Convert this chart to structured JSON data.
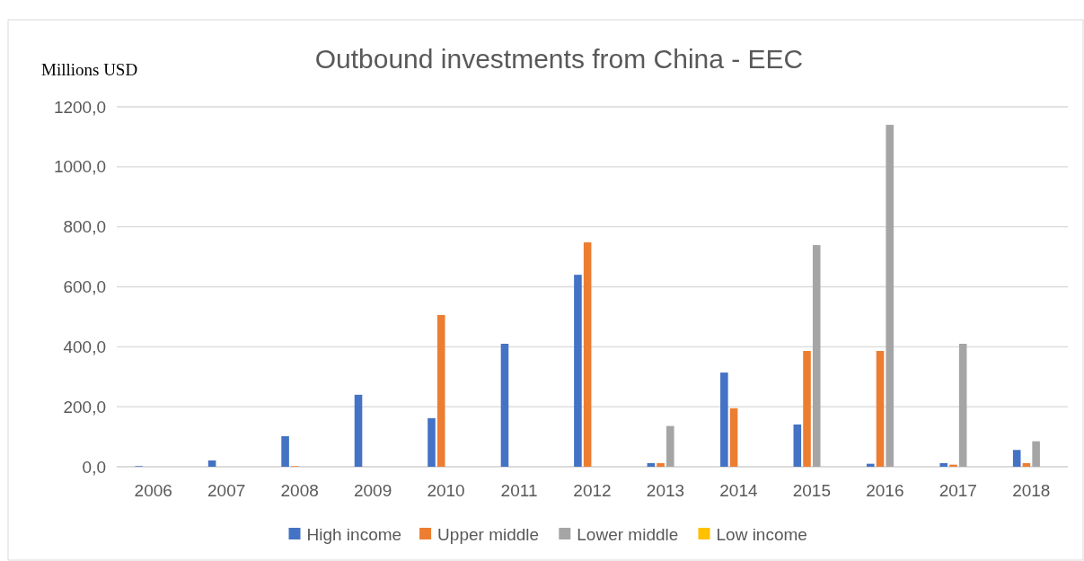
{
  "chart_data": {
    "type": "bar",
    "title": "Outbound investments from China - EEC",
    "ylabel": "Millions USD",
    "categories": [
      "2006",
      "2007",
      "2008",
      "2009",
      "2010",
      "2011",
      "2012",
      "2013",
      "2014",
      "2015",
      "2016",
      "2017",
      "2018"
    ],
    "series": [
      {
        "name": "High income",
        "color": "#4472c4",
        "values": [
          2,
          21,
          102,
          240,
          162,
          410,
          640,
          12,
          314,
          141,
          10,
          12,
          56
        ]
      },
      {
        "name": "Upper middle",
        "color": "#ed7d31",
        "values": [
          0,
          0,
          2,
          0,
          506,
          0,
          748,
          12,
          195,
          386,
          386,
          7,
          12
        ]
      },
      {
        "name": "Lower middle",
        "color": "#a5a5a5",
        "values": [
          0,
          0,
          0,
          0,
          0,
          0,
          0,
          136,
          0,
          739,
          1140,
          410,
          85
        ]
      },
      {
        "name": "Low income",
        "color": "#ffc000",
        "values": [
          0,
          0,
          0,
          0,
          0,
          0,
          0,
          0,
          0,
          0,
          0,
          0,
          0
        ]
      }
    ],
    "ylim": [
      0,
      1200
    ],
    "yticks": [
      {
        "value": 0,
        "label": "0,0"
      },
      {
        "value": 200,
        "label": "200,0"
      },
      {
        "value": 400,
        "label": "400,0"
      },
      {
        "value": 600,
        "label": "600,0"
      },
      {
        "value": 800,
        "label": "800,0"
      },
      {
        "value": 1000,
        "label": "1000,0"
      },
      {
        "value": 1200,
        "label": "1200,0"
      }
    ],
    "grid": "y",
    "legend": "bottom"
  }
}
